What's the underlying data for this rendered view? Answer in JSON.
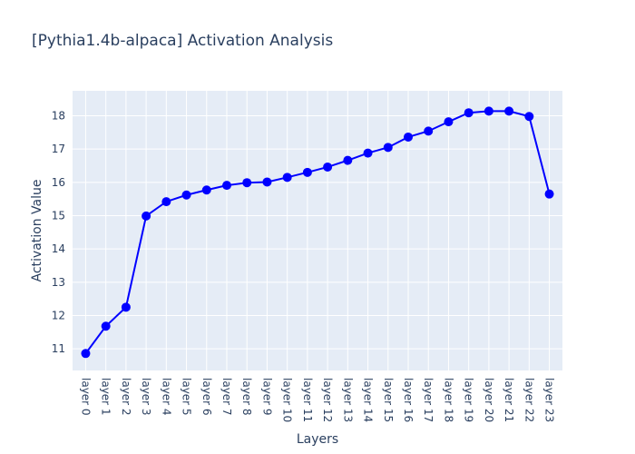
{
  "chart_data": {
    "type": "line",
    "title": "[Pythia1.4b-alpaca] Activation Analysis",
    "xlabel": "Layers",
    "ylabel": "Activation Value",
    "categories": [
      "layer 0",
      "layer 1",
      "layer 2",
      "layer 3",
      "layer 4",
      "layer 5",
      "layer 6",
      "layer 7",
      "layer 8",
      "layer 9",
      "layer 10",
      "layer 11",
      "layer 12",
      "layer 13",
      "layer 14",
      "layer 15",
      "layer 16",
      "layer 17",
      "layer 18",
      "layer 19",
      "layer 20",
      "layer 21",
      "layer 22",
      "layer 23"
    ],
    "series": [
      {
        "color": "#0000ff",
        "values": [
          10.86,
          11.68,
          12.25,
          14.99,
          15.42,
          15.62,
          15.77,
          15.91,
          15.99,
          16.01,
          16.15,
          16.3,
          16.46,
          16.66,
          16.88,
          17.05,
          17.36,
          17.54,
          17.82,
          18.09,
          18.14,
          18.14,
          17.98,
          15.65
        ]
      }
    ],
    "ylim": [
      10.35,
      18.75
    ],
    "yticks": [
      11,
      12,
      13,
      14,
      15,
      16,
      17,
      18
    ],
    "grid": true,
    "legend": "none"
  }
}
